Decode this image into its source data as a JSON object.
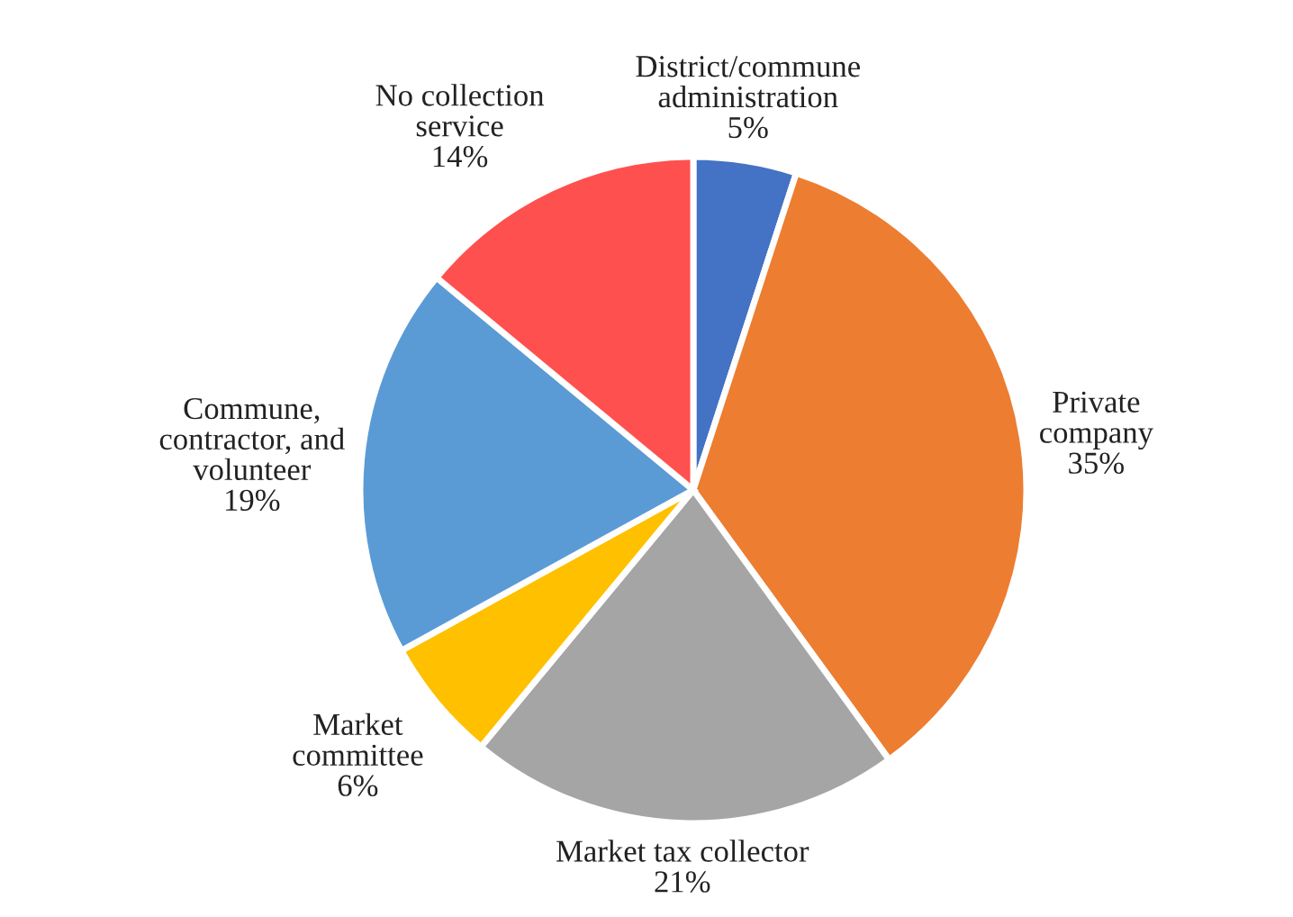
{
  "chart_data": {
    "type": "pie",
    "categories": [
      "District/commune\nadministration",
      "Private\ncompany",
      "Market tax collector",
      "Market\ncommittee",
      "Commune,\ncontractor, and\nvolunteer",
      "No collection\nservice"
    ],
    "values": [
      5,
      35,
      21,
      6,
      19,
      14
    ],
    "value_labels": [
      "5%",
      "35%",
      "21%",
      "6%",
      "19%",
      "14%"
    ],
    "colors": [
      "#4472c4",
      "#ed7d31",
      "#a5a5a5",
      "#ffc000",
      "#5b9bd5",
      "#ff5050"
    ],
    "legend": false
  }
}
